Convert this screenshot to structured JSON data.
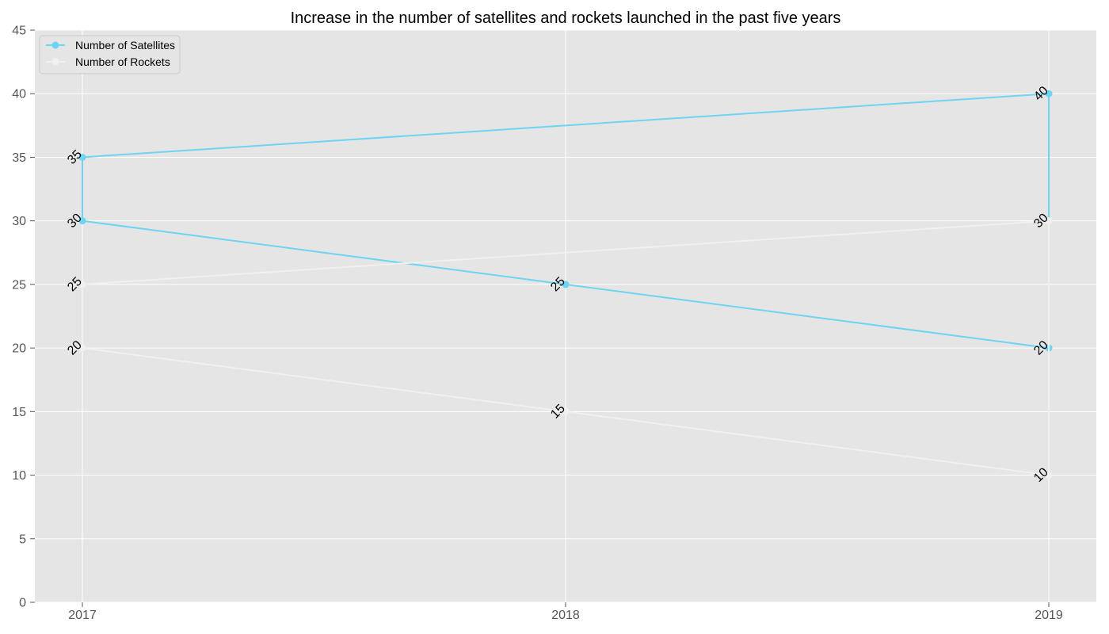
{
  "chart_data": {
    "type": "line",
    "title": "Increase in the number of satellites and rockets launched in the past five years",
    "xlabel": "",
    "ylabel": "",
    "x_ticks": [
      "2017",
      "2018",
      "2019"
    ],
    "ylim": [
      0,
      45
    ],
    "y_ticks": [
      0,
      5,
      10,
      15,
      20,
      25,
      30,
      35,
      40,
      45
    ],
    "grid": true,
    "legend_position": "top-left",
    "series": [
      {
        "name": "Number of Satellites",
        "color": "#6dd5f3",
        "points": [
          {
            "x": "2017",
            "y": 35
          },
          {
            "x": "2017",
            "y": 30
          },
          {
            "x": "2018",
            "y": 25
          },
          {
            "x": "2019",
            "y": 20
          },
          {
            "x": "2019",
            "y": 40
          },
          {
            "x": "2017",
            "y": 35
          }
        ],
        "labels": [
          {
            "x": "2017",
            "y": 35,
            "text": "35"
          },
          {
            "x": "2017",
            "y": 30,
            "text": "30"
          },
          {
            "x": "2018",
            "y": 25,
            "text": "25"
          },
          {
            "x": "2019",
            "y": 20,
            "text": "20"
          },
          {
            "x": "2019",
            "y": 40,
            "text": "40"
          }
        ]
      },
      {
        "name": "Number of Rockets",
        "color": "#f0f0f0",
        "points": [
          {
            "x": "2017",
            "y": 25
          },
          {
            "x": "2017",
            "y": 20
          },
          {
            "x": "2018",
            "y": 15
          },
          {
            "x": "2019",
            "y": 10
          },
          {
            "x": "2019",
            "y": 30
          },
          {
            "x": "2017",
            "y": 25
          }
        ],
        "labels": [
          {
            "x": "2017",
            "y": 25,
            "text": "25"
          },
          {
            "x": "2017",
            "y": 20,
            "text": "20"
          },
          {
            "x": "2018",
            "y": 15,
            "text": "15"
          },
          {
            "x": "2019",
            "y": 10,
            "text": "10"
          },
          {
            "x": "2019",
            "y": 30,
            "text": "30"
          }
        ]
      }
    ]
  },
  "colors": {
    "plot_background": "#e5e5e5",
    "grid": "#ffffff",
    "tick_label": "#555555"
  }
}
